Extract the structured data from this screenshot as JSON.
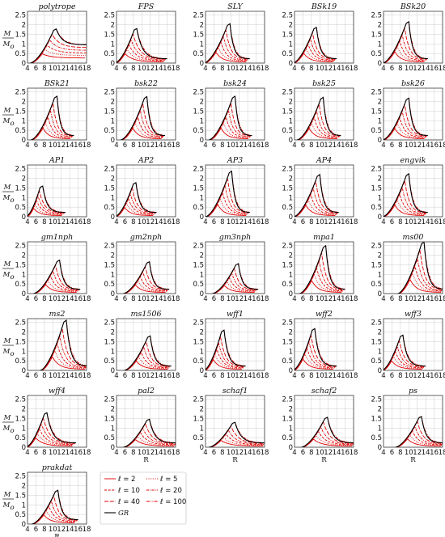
{
  "figure": {
    "y_label_top": "M",
    "y_label_bottom": "M",
    "y_label_sub": "o",
    "x_label": "R",
    "x_ticks": [
      "4",
      "6",
      "8",
      "10",
      "12",
      "14",
      "16",
      "18"
    ],
    "y_ticks": [
      "0",
      "0.5",
      "1",
      "1.5",
      "2",
      "2.5"
    ]
  },
  "colors": {
    "gr": "#000000",
    "stable": "#e00000"
  },
  "legend": {
    "items": [
      {
        "label": "ℓ = 2",
        "style": "solid"
      },
      {
        "label": "ℓ = 5",
        "style": "dotted"
      },
      {
        "label": "ℓ = 10",
        "style": "dashed"
      },
      {
        "label": "ℓ = 20",
        "style": "dashdot"
      },
      {
        "label": "ℓ = 40",
        "style": "longdash"
      },
      {
        "label": "ℓ = 100",
        "style": "dashdotdot"
      },
      {
        "label": "GR",
        "style": "gr"
      }
    ]
  },
  "chart_data": {
    "type": "line",
    "x_axis": {
      "label": "R",
      "range": [
        4,
        18
      ],
      "ticks": [
        4,
        6,
        8,
        10,
        12,
        14,
        16,
        18
      ]
    },
    "y_axis": {
      "label": "M/Mo",
      "range": [
        0,
        2.7
      ],
      "ticks": [
        0,
        0.5,
        1,
        1.5,
        2,
        2.5
      ]
    },
    "grid": true,
    "legend_position": "bottom, beside the last panel",
    "series_styles": [
      "ℓ = 2",
      "ℓ = 5",
      "ℓ = 10",
      "ℓ = 20",
      "ℓ = 40",
      "ℓ = 100",
      "GR"
    ],
    "panels": [
      {
        "title": "polytrope",
        "r_peak": 10.8,
        "m_max": 1.78,
        "r_tail": 18.5,
        "m_tail": 0.95
      },
      {
        "title": "FPS",
        "r_peak": 8.8,
        "m_max": 1.8,
        "r_tail": 16,
        "m_tail": 0.22
      },
      {
        "title": "SLY",
        "r_peak": 9.8,
        "m_max": 2.05,
        "r_tail": 14.5,
        "m_tail": 0.22
      },
      {
        "title": "BSk19",
        "r_peak": 9.2,
        "m_max": 1.86,
        "r_tail": 14,
        "m_tail": 0.22
      },
      {
        "title": "BSk20",
        "r_peak": 10.0,
        "m_max": 2.16,
        "r_tail": 14.5,
        "m_tail": 0.22
      },
      {
        "title": "BSk21",
        "r_peak": 11.0,
        "m_max": 2.28,
        "r_tail": 15,
        "m_tail": 0.22
      },
      {
        "title": "bsk22",
        "r_peak": 11.2,
        "m_max": 2.26,
        "r_tail": 15.5,
        "m_tail": 0.22
      },
      {
        "title": "bsk24",
        "r_peak": 11.0,
        "m_max": 2.28,
        "r_tail": 15,
        "m_tail": 0.22
      },
      {
        "title": "bsk25",
        "r_peak": 10.8,
        "m_max": 2.22,
        "r_tail": 15,
        "m_tail": 0.22
      },
      {
        "title": "bsk26",
        "r_peak": 10.0,
        "m_max": 2.18,
        "r_tail": 14.5,
        "m_tail": 0.22
      },
      {
        "title": "AP1",
        "r_peak": 7.6,
        "m_max": 1.6,
        "r_tail": 13,
        "m_tail": 0.22
      },
      {
        "title": "AP2",
        "r_peak": 8.6,
        "m_max": 1.78,
        "r_tail": 13.5,
        "m_tail": 0.22
      },
      {
        "title": "AP3",
        "r_peak": 10.2,
        "m_max": 2.38,
        "r_tail": 14.5,
        "m_tail": 0.22
      },
      {
        "title": "AP4",
        "r_peak": 10.0,
        "m_max": 2.2,
        "r_tail": 14.5,
        "m_tail": 0.22
      },
      {
        "title": "engvik",
        "r_peak": 10.0,
        "m_max": 2.24,
        "r_tail": 14.5,
        "m_tail": 0.22
      },
      {
        "title": "gm1nph",
        "r_peak": 11.6,
        "m_max": 1.74,
        "r_tail": 16.5,
        "m_tail": 0.22
      },
      {
        "title": "gm2nph",
        "r_peak": 11.8,
        "m_max": 1.66,
        "r_tail": 16.5,
        "m_tail": 0.22
      },
      {
        "title": "gm3nph",
        "r_peak": 11.8,
        "m_max": 1.56,
        "r_tail": 16.5,
        "m_tail": 0.22
      },
      {
        "title": "mpa1",
        "r_peak": 11.4,
        "m_max": 2.5,
        "r_tail": 16,
        "m_tail": 0.22
      },
      {
        "title": "ms00",
        "r_peak": 13.6,
        "m_max": 2.7,
        "r_tail": 18.5,
        "m_tail": 0.22
      },
      {
        "title": "ms2",
        "r_peak": 13.2,
        "m_max": 2.62,
        "r_tail": 18.5,
        "m_tail": 0.22
      },
      {
        "title": "ms1506",
        "r_peak": 12.0,
        "m_max": 1.8,
        "r_tail": 17,
        "m_tail": 0.22
      },
      {
        "title": "wff1",
        "r_peak": 8.4,
        "m_max": 2.1,
        "r_tail": 13.5,
        "m_tail": 0.22
      },
      {
        "title": "wff2",
        "r_peak": 8.8,
        "m_max": 2.18,
        "r_tail": 14,
        "m_tail": 0.22
      },
      {
        "title": "wff3",
        "r_peak": 8.6,
        "m_max": 1.84,
        "r_tail": 14,
        "m_tail": 0.22
      },
      {
        "title": "wff4",
        "r_peak": 8.6,
        "m_max": 1.8,
        "r_tail": 15.5,
        "m_tail": 0.22
      },
      {
        "title": "pal2",
        "r_peak": 11.8,
        "m_max": 1.46,
        "r_tail": 18.5,
        "m_tail": 0.22
      },
      {
        "title": "schaf1",
        "r_peak": 11.0,
        "m_max": 1.3,
        "r_tail": 18.5,
        "m_tail": 0.22
      },
      {
        "title": "schaf2",
        "r_peak": 11.8,
        "m_max": 1.56,
        "r_tail": 18.5,
        "m_tail": 0.22
      },
      {
        "title": "ps",
        "r_peak": 13.0,
        "m_max": 1.6,
        "r_tail": 18.5,
        "m_tail": 0.22
      },
      {
        "title": "prakdat",
        "r_peak": 11.2,
        "m_max": 1.76,
        "r_tail": 16,
        "m_tail": 0.22
      }
    ]
  }
}
